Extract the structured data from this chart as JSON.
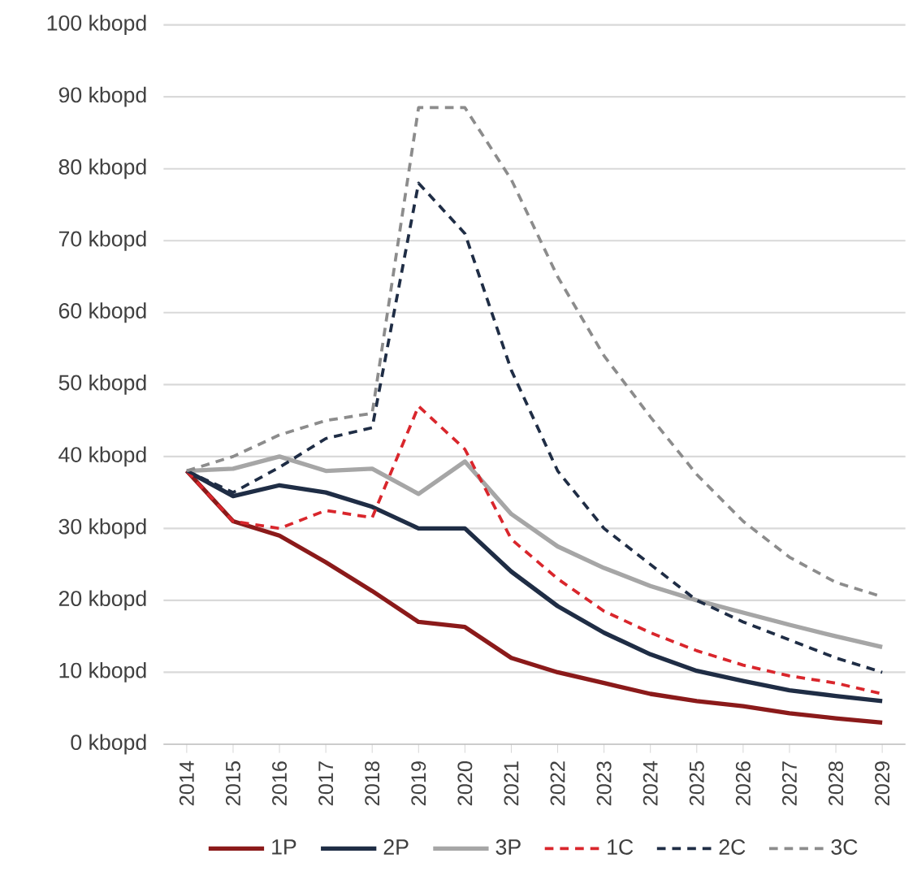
{
  "chart_data": {
    "type": "line",
    "categories": [
      "2014",
      "2015",
      "2016",
      "2017",
      "2018",
      "2019",
      "2020",
      "2021",
      "2022",
      "2023",
      "2024",
      "2025",
      "2026",
      "2027",
      "2028",
      "2029"
    ],
    "ylim": [
      0,
      100
    ],
    "yticks": [
      {
        "value": 0,
        "label": "0 kbopd"
      },
      {
        "value": 10,
        "label": "10 kbopd"
      },
      {
        "value": 20,
        "label": "20 kbopd"
      },
      {
        "value": 30,
        "label": "30 kbopd"
      },
      {
        "value": 40,
        "label": "40 kbopd"
      },
      {
        "value": 50,
        "label": "50 kbopd"
      },
      {
        "value": 60,
        "label": "60 kbopd"
      },
      {
        "value": 70,
        "label": "70 kbopd"
      },
      {
        "value": 80,
        "label": "80 kbopd"
      },
      {
        "value": 90,
        "label": "90 kbopd"
      },
      {
        "value": 100,
        "label": "100 kbopd"
      }
    ],
    "grid": "y",
    "legend": "bottom",
    "marker": "none",
    "series": [
      {
        "name": "1P",
        "color": "#8b1a1a",
        "line_style": "solid",
        "values": [
          38,
          31,
          29,
          25.3,
          21.3,
          17,
          16.3,
          12,
          10,
          8.5,
          7,
          6,
          5.3,
          4.3,
          3.6,
          3
        ]
      },
      {
        "name": "2P",
        "color": "#1f2d45",
        "line_style": "solid",
        "values": [
          38,
          34.5,
          36,
          35,
          33,
          30,
          30,
          24,
          19.2,
          15.5,
          12.5,
          10.2,
          8.8,
          7.5,
          6.7,
          6
        ]
      },
      {
        "name": "3P",
        "color": "#a6a6a6",
        "line_style": "solid",
        "values": [
          38,
          38.3,
          40,
          38,
          38.3,
          34.8,
          39.3,
          32,
          27.5,
          24.5,
          22,
          20,
          18.3,
          16.6,
          15,
          13.5
        ]
      },
      {
        "name": "1C",
        "color": "#d9262c",
        "line_style": "dashed",
        "values": [
          38,
          31,
          30,
          32.5,
          31.5,
          47,
          41,
          28.5,
          23,
          18.5,
          15.5,
          13,
          11,
          9.5,
          8.5,
          7
        ]
      },
      {
        "name": "2C",
        "color": "#1f2d45",
        "line_style": "dashed",
        "values": [
          38,
          35,
          38.5,
          42.5,
          44,
          78,
          71,
          52,
          38,
          30,
          25,
          20,
          17,
          14.5,
          12,
          10
        ]
      },
      {
        "name": "3C",
        "color": "#8c8c8c",
        "line_style": "dashed",
        "values": [
          38,
          40,
          43,
          45,
          46,
          88.5,
          88.5,
          78.5,
          65,
          54,
          45.5,
          37.5,
          31,
          26,
          22.5,
          20.5
        ]
      }
    ]
  }
}
